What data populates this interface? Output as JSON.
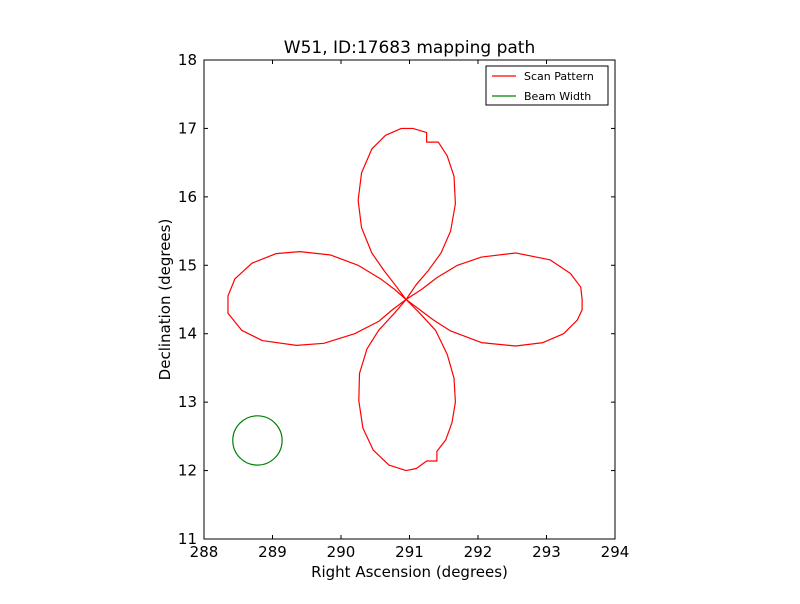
{
  "chart_data": {
    "type": "line",
    "title": "W51, ID:17683 mapping path",
    "xlabel": "Right Ascension (degrees)",
    "ylabel": "Declination (degrees)",
    "xlim": [
      288,
      294
    ],
    "ylim": [
      11,
      18
    ],
    "xticks": [
      "288",
      "289",
      "290",
      "291",
      "292",
      "293",
      "294"
    ],
    "yticks": [
      "11",
      "12",
      "13",
      "14",
      "15",
      "16",
      "17",
      "18"
    ],
    "grid": false,
    "legend_position": "top-right",
    "series": [
      {
        "name": "Scan Pattern",
        "color": "#ff0000",
        "points": [
          [
            290.95,
            14.5
          ],
          [
            291.1,
            14.72
          ],
          [
            291.28,
            14.93
          ],
          [
            291.46,
            15.18
          ],
          [
            291.6,
            15.5
          ],
          [
            291.67,
            15.9
          ],
          [
            291.65,
            16.3
          ],
          [
            291.55,
            16.6
          ],
          [
            291.42,
            16.8
          ],
          [
            291.25,
            16.8
          ],
          [
            291.25,
            16.94
          ],
          [
            291.05,
            17.0
          ],
          [
            290.88,
            17.0
          ],
          [
            290.65,
            16.9
          ],
          [
            290.45,
            16.7
          ],
          [
            290.3,
            16.35
          ],
          [
            290.25,
            15.95
          ],
          [
            290.3,
            15.55
          ],
          [
            290.45,
            15.18
          ],
          [
            290.63,
            14.92
          ],
          [
            290.8,
            14.7
          ],
          [
            290.95,
            14.5
          ],
          [
            291.15,
            14.35
          ],
          [
            291.35,
            14.2
          ],
          [
            291.6,
            14.04
          ],
          [
            292.05,
            13.87
          ],
          [
            292.55,
            13.82
          ],
          [
            292.95,
            13.87
          ],
          [
            293.25,
            14.0
          ],
          [
            293.45,
            14.2
          ],
          [
            293.52,
            14.35
          ],
          [
            293.52,
            14.5
          ],
          [
            293.5,
            14.68
          ],
          [
            293.35,
            14.88
          ],
          [
            293.05,
            15.08
          ],
          [
            292.55,
            15.18
          ],
          [
            292.05,
            15.12
          ],
          [
            291.7,
            15.0
          ],
          [
            291.4,
            14.82
          ],
          [
            291.18,
            14.65
          ],
          [
            290.95,
            14.5
          ],
          [
            290.75,
            14.35
          ],
          [
            290.55,
            14.18
          ],
          [
            290.2,
            14.0
          ],
          [
            289.75,
            13.86
          ],
          [
            289.35,
            13.83
          ],
          [
            288.85,
            13.9
          ],
          [
            288.55,
            14.05
          ],
          [
            288.35,
            14.3
          ],
          [
            288.35,
            14.55
          ],
          [
            288.45,
            14.8
          ],
          [
            288.7,
            15.03
          ],
          [
            289.05,
            15.17
          ],
          [
            289.4,
            15.2
          ],
          [
            289.85,
            15.15
          ],
          [
            290.25,
            15.0
          ],
          [
            290.58,
            14.8
          ],
          [
            290.78,
            14.65
          ],
          [
            290.95,
            14.5
          ],
          [
            290.78,
            14.3
          ],
          [
            290.55,
            14.05
          ],
          [
            290.38,
            13.78
          ],
          [
            290.27,
            13.42
          ],
          [
            290.26,
            13.02
          ],
          [
            290.32,
            12.62
          ],
          [
            290.47,
            12.3
          ],
          [
            290.7,
            12.08
          ],
          [
            290.95,
            12.0
          ],
          [
            291.1,
            12.03
          ],
          [
            291.25,
            12.14
          ],
          [
            291.4,
            12.14
          ],
          [
            291.4,
            12.28
          ],
          [
            291.53,
            12.45
          ],
          [
            291.62,
            12.7
          ],
          [
            291.67,
            13.0
          ],
          [
            291.65,
            13.35
          ],
          [
            291.55,
            13.7
          ],
          [
            291.38,
            14.05
          ],
          [
            291.15,
            14.3
          ],
          [
            290.95,
            14.5
          ]
        ]
      },
      {
        "name": "Beam Width",
        "color": "#008000",
        "shape": "circle",
        "center": [
          288.78,
          12.44
        ],
        "radius": 0.36
      }
    ]
  }
}
